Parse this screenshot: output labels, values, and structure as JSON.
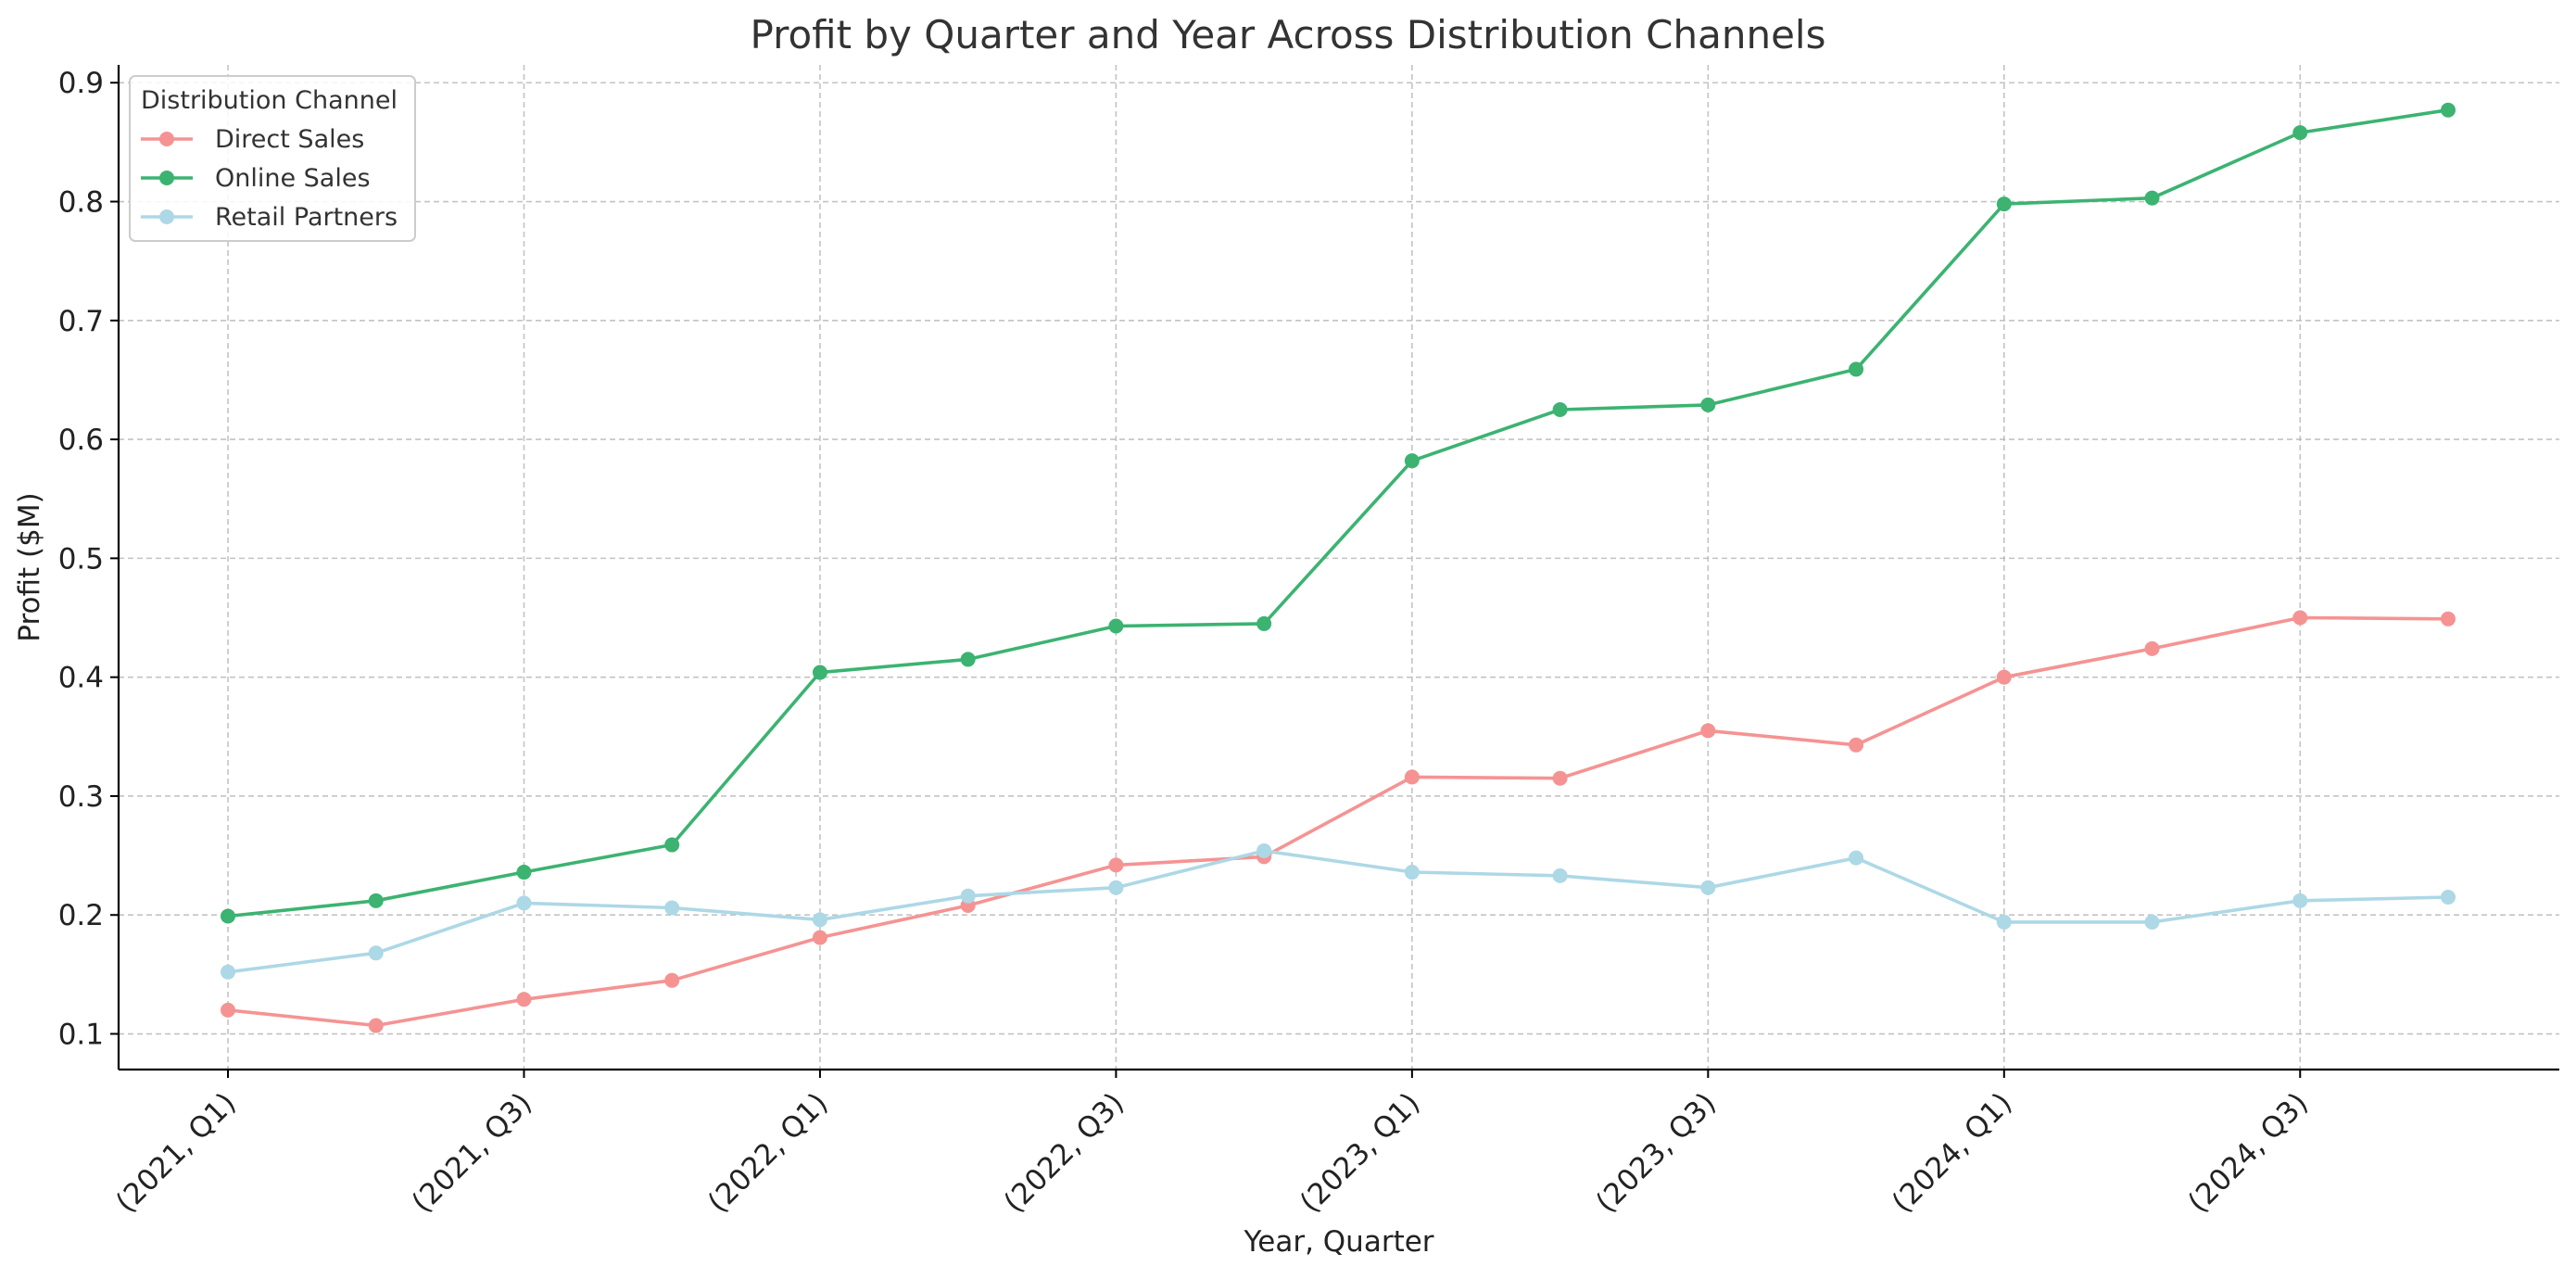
{
  "chart_data": {
    "type": "line",
    "title": "Profit by Quarter and Year Across Distribution Channels",
    "xlabel": "Year, Quarter",
    "ylabel": "Profit ($M)",
    "ylim": [
      0.07,
      0.915
    ],
    "yticks": [
      0.1,
      0.2,
      0.3,
      0.4,
      0.5,
      0.6,
      0.7,
      0.8,
      0.9
    ],
    "ytick_labels": [
      "0.1",
      "0.2",
      "0.3",
      "0.4",
      "0.5",
      "0.6",
      "0.7",
      "0.8",
      "0.9"
    ],
    "categories": [
      "(2021, Q1)",
      "(2021, Q2)",
      "(2021, Q3)",
      "(2021, Q4)",
      "(2022, Q1)",
      "(2022, Q2)",
      "(2022, Q3)",
      "(2022, Q4)",
      "(2023, Q1)",
      "(2023, Q2)",
      "(2023, Q3)",
      "(2023, Q4)",
      "(2024, Q1)",
      "(2024, Q2)",
      "(2024, Q3)",
      "(2024, Q4)"
    ],
    "xtick_labels": [
      "(2021, Q1)",
      "(2021, Q3)",
      "(2022, Q1)",
      "(2022, Q3)",
      "(2023, Q1)",
      "(2023, Q3)",
      "(2024, Q1)",
      "(2024, Q3)"
    ],
    "grid": true,
    "legend_title": "Distribution Channel",
    "legend_position": "top-left",
    "series": [
      {
        "name": "Direct Sales",
        "color": "#f59393",
        "values": [
          0.12,
          0.107,
          0.129,
          0.145,
          0.181,
          0.208,
          0.242,
          0.249,
          0.316,
          0.315,
          0.355,
          0.343,
          0.4,
          0.424,
          0.45,
          0.449
        ]
      },
      {
        "name": "Online Sales",
        "color": "#3cb371",
        "values": [
          0.199,
          0.212,
          0.236,
          0.259,
          0.404,
          0.415,
          0.443,
          0.445,
          0.582,
          0.625,
          0.629,
          0.659,
          0.798,
          0.803,
          0.858,
          0.877
        ]
      },
      {
        "name": "Retail Partners",
        "color": "#add8e6",
        "values": [
          0.152,
          0.168,
          0.21,
          0.206,
          0.196,
          0.216,
          0.223,
          0.254,
          0.236,
          0.233,
          0.223,
          0.248,
          0.194,
          0.194,
          0.212,
          0.215
        ]
      }
    ]
  }
}
